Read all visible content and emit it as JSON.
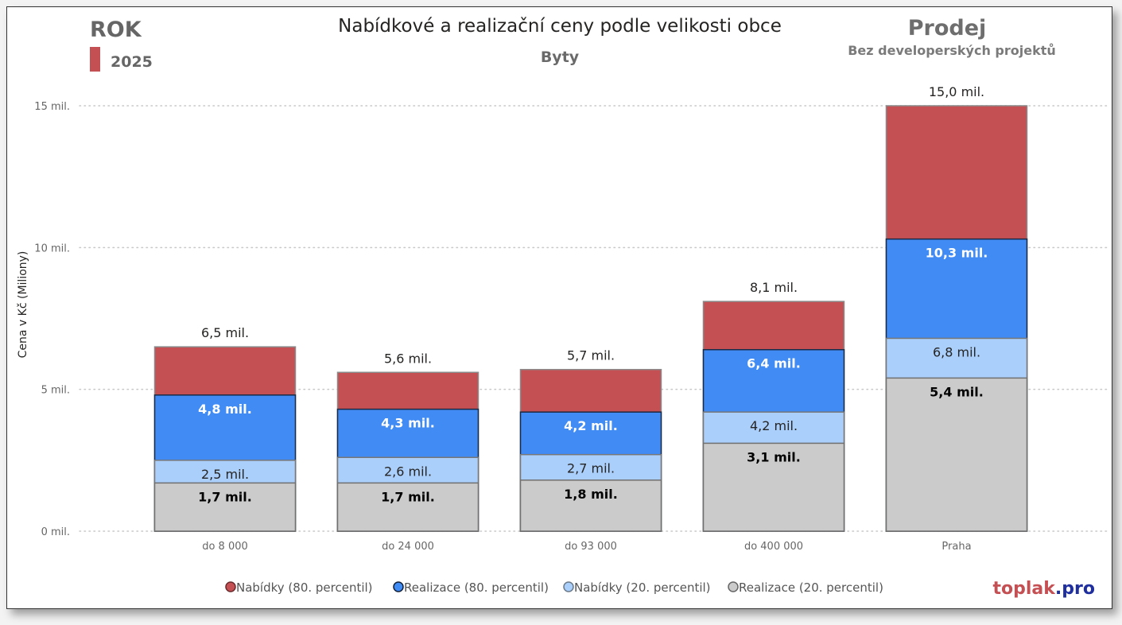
{
  "header": {
    "title": "Nabídkové a realizační ceny podle velikosti obce",
    "subtitle": "Byty",
    "filter_label": "ROK",
    "filter_value": "2025",
    "filter_color": "#c55054",
    "mode_title": "Prodej",
    "mode_subtitle": "Bez developerských projektů"
  },
  "brand": {
    "part1": "toplak",
    "part2": ".pro",
    "color1": "#c55054",
    "color2": "#1f2f9e"
  },
  "chart_data": {
    "type": "bar",
    "stacked_overlay": true,
    "title": "Nabídkové a realizační ceny podle velikosti obce",
    "subtitle": "Byty",
    "xlabel": "",
    "ylabel": "Cena v Kč (Miliony)",
    "ylim": [
      0,
      15
    ],
    "yticks": [
      0,
      5,
      10,
      15
    ],
    "ytick_labels": [
      "0 mil.",
      "5 mil.",
      "10 mil.",
      "15 mil."
    ],
    "grid": true,
    "legend_position": "bottom",
    "categories": [
      "do 8 000",
      "do 24 000",
      "do 93 000",
      "do 400 000",
      "Praha"
    ],
    "series": [
      {
        "name": "Nabídky (80. percentil)",
        "color": "#c55054",
        "label_color": "#252423",
        "label_bold": false,
        "label_position": "above",
        "values": [
          6.5,
          5.6,
          5.7,
          8.1,
          15.0
        ],
        "labels": [
          "6,5 mil.",
          "5,6 mil.",
          "5,7 mil.",
          "8,1 mil.",
          "15,0 mil."
        ]
      },
      {
        "name": "Realizace (80. percentil)",
        "color": "#418bf4",
        "label_color": "#ffffff",
        "label_bold": true,
        "label_position": "inside-top",
        "values": [
          4.8,
          4.3,
          4.2,
          6.4,
          10.3
        ],
        "labels": [
          "4,8 mil.",
          "4,3 mil.",
          "4,2 mil.",
          "6,4 mil.",
          "10,3 mil."
        ]
      },
      {
        "name": "Nabídky (20. percentil)",
        "color": "#abcffb",
        "label_color": "#252423",
        "label_bold": false,
        "label_position": "inside-top",
        "values": [
          2.5,
          2.6,
          2.7,
          4.2,
          6.8
        ],
        "labels": [
          "2,5 mil.",
          "2,6 mil.",
          "2,7 mil.",
          "4,2 mil.",
          "6,8 mil."
        ]
      },
      {
        "name": "Realizace (20. percentil)",
        "color": "#cbcbcb",
        "label_color": "#000000",
        "label_bold": true,
        "label_position": "inside-top",
        "values": [
          1.7,
          1.7,
          1.8,
          3.1,
          5.4
        ],
        "labels": [
          "1,7 mil.",
          "1,7 mil.",
          "1,8 mil.",
          "3,1 mil.",
          "5,4 mil."
        ]
      }
    ]
  }
}
